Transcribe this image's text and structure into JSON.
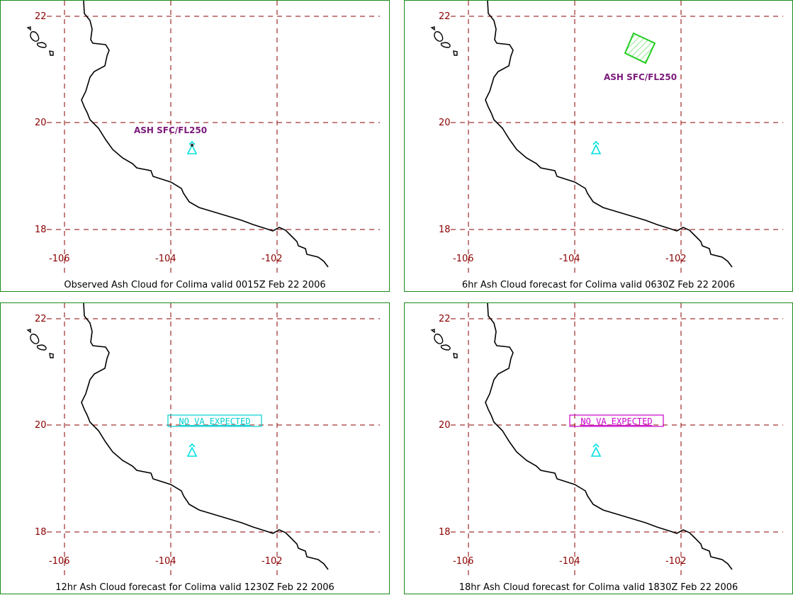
{
  "panels": [
    {
      "caption": "Observed Ash Cloud for Colima valid 0015Z Feb 22 2006",
      "lat_labels": [
        "22",
        "20",
        "18"
      ],
      "lon_labels": [
        "-106",
        "-104",
        "-102"
      ],
      "ash_label": "ASH SFC/FL250",
      "box_label": ""
    },
    {
      "caption": "6hr Ash Cloud forecast for Colima valid 0630Z Feb 22 2006",
      "lat_labels": [
        "22",
        "20",
        "18"
      ],
      "lon_labels": [
        "-106",
        "-104",
        "-102"
      ],
      "ash_label": "ASH SFC/FL250",
      "box_label": ""
    },
    {
      "caption": "12hr Ash Cloud forecast for Colima valid 1230Z Feb 22 2006",
      "lat_labels": [
        "22",
        "20",
        "18"
      ],
      "lon_labels": [
        "-106",
        "-104",
        "-102"
      ],
      "ash_label": "",
      "box_label": "NO VA EXPECTED"
    },
    {
      "caption": "18hr Ash Cloud forecast for Colima valid 1830Z Feb 22 2006",
      "lat_labels": [
        "22",
        "20",
        "18"
      ],
      "lon_labels": [
        "-106",
        "-104",
        "-102"
      ],
      "ash_label": "",
      "box_label": "NO VA EXPECTED"
    }
  ],
  "colors": {
    "border": "#1a8a1a",
    "grid": "#8b0000",
    "axis_label": "#8b0000",
    "coast": "#000000",
    "volcano": "#00e0e0",
    "ash_label": "#7a1a7a",
    "ash_cloud": "#22cc22",
    "box_cyan": "#00d0d0",
    "box_magenta": "#cc00cc"
  },
  "icons": {
    "volcano": "volcano-triangle-icon",
    "islands": "island-outline-icon"
  }
}
